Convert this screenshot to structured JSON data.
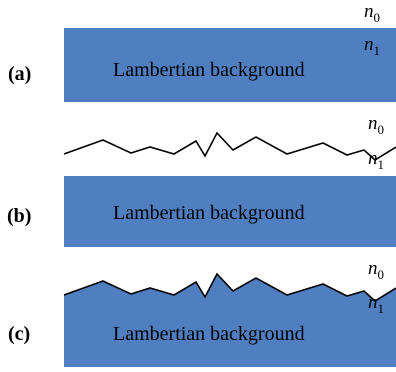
{
  "panels": [
    {
      "label": "(a)",
      "background_text": "Lambertian background",
      "n0_base": "n",
      "n0_sub": "0",
      "n1_base": "n",
      "n1_sub": "1"
    },
    {
      "label": "(b)",
      "background_text": "Lambertian background",
      "n0_base": "n",
      "n0_sub": "0",
      "n1_base": "n",
      "n1_sub": "1"
    },
    {
      "label": "(c)",
      "background_text": "Lambertian background",
      "n0_base": "n",
      "n0_sub": "0",
      "n1_base": "n",
      "n1_sub": "1"
    }
  ],
  "colors": {
    "background_fill": "#4f7fc0",
    "line": "#000000",
    "text": "#000000"
  }
}
